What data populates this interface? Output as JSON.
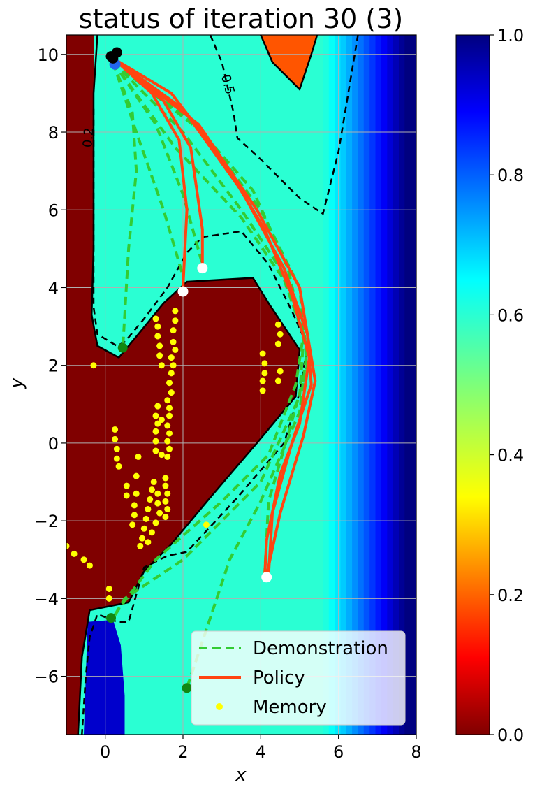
{
  "chart_data": {
    "type": "heatmap",
    "title": "status of iteration 30 (3)",
    "xlabel": "x",
    "ylabel": "y",
    "xlim": [
      -1,
      8
    ],
    "ylim": [
      -7.5,
      10.5
    ],
    "x_ticks": [
      0,
      2,
      4,
      6,
      8
    ],
    "y_ticks": [
      -6,
      -4,
      -2,
      0,
      2,
      4,
      6,
      8,
      10
    ],
    "x_tick_labels": [
      "0",
      "2",
      "4",
      "6",
      "8"
    ],
    "y_tick_labels": [
      "−6",
      "−4",
      "−2",
      "0",
      "2",
      "4",
      "6",
      "8",
      "10"
    ],
    "grid": true,
    "colormap": "jet_r",
    "colorbar": {
      "range": [
        0.0,
        1.0
      ],
      "ticks": [
        0.0,
        0.2,
        0.4,
        0.6,
        0.8,
        1.0
      ],
      "tick_labels": [
        "0.0",
        "0.2",
        "0.4",
        "0.6",
        "0.8",
        "1.0"
      ]
    },
    "contours": [
      {
        "level": "0.2",
        "style": "dashed",
        "color": "#000000",
        "label": "0.2",
        "points": [
          [
            -0.3,
            8.6
          ],
          [
            -0.3,
            6.0
          ],
          [
            -0.3,
            3.5
          ],
          [
            -0.2,
            2.8
          ],
          [
            0.3,
            2.5
          ],
          [
            0.5,
            2.6
          ],
          [
            1.0,
            3.2
          ],
          [
            1.6,
            4.0
          ],
          [
            2.1,
            4.9
          ],
          [
            2.5,
            5.3
          ],
          [
            3.5,
            5.45
          ],
          [
            4.2,
            4.6
          ],
          [
            4.8,
            3.4
          ],
          [
            5.2,
            2.5
          ],
          [
            5.0,
            1.3
          ],
          [
            4.6,
            0.0
          ],
          [
            3.4,
            -1.4
          ],
          [
            2.1,
            -2.8
          ],
          [
            1.6,
            -2.9
          ],
          [
            1.0,
            -3.2
          ],
          [
            0.8,
            -3.9
          ],
          [
            0.6,
            -4.6
          ],
          [
            0.3,
            -4.6
          ],
          [
            -0.2,
            -4.4
          ],
          [
            -0.4,
            -5.0
          ],
          [
            -0.5,
            -6.0
          ],
          [
            -0.6,
            -7.5
          ]
        ]
      },
      {
        "level": "0.5",
        "style": "dashed",
        "color": "#000000",
        "label": "0.5",
        "points": [
          [
            2.7,
            10.5
          ],
          [
            3.0,
            9.8
          ],
          [
            3.3,
            8.5
          ],
          [
            3.4,
            7.85
          ],
          [
            4.0,
            7.3
          ],
          [
            5.0,
            6.3
          ],
          [
            5.6,
            5.9
          ],
          [
            6.0,
            7.5
          ],
          [
            6.5,
            10.5
          ]
        ]
      },
      {
        "level": "0.0-boundary",
        "style": "solid",
        "color": "#000000",
        "points": [
          [
            0.35,
            2.2
          ],
          [
            0.85,
            2.8
          ],
          [
            1.5,
            3.6
          ],
          [
            2.1,
            4.15
          ],
          [
            3.8,
            4.25
          ],
          [
            4.2,
            3.6
          ],
          [
            5.0,
            2.4
          ],
          [
            4.9,
            1.2
          ],
          [
            3.9,
            0.0
          ],
          [
            2.7,
            -1.4
          ],
          [
            1.7,
            -2.6
          ],
          [
            1.0,
            -3.3
          ],
          [
            0.6,
            -4.1
          ],
          [
            -0.4,
            -4.3
          ],
          [
            -0.6,
            -5.5
          ],
          [
            -0.7,
            -7.5
          ]
        ]
      },
      {
        "level": "0.0-boundary",
        "style": "solid",
        "color": "#000000",
        "points": [
          [
            0.35,
            2.2
          ],
          [
            -0.2,
            2.5
          ],
          [
            -0.35,
            3.3
          ],
          [
            -0.3,
            5.0
          ],
          [
            -0.3,
            7.0
          ],
          [
            -0.3,
            9.0
          ],
          [
            -0.2,
            10.5
          ]
        ]
      },
      {
        "level": "0.0-boundary",
        "style": "solid",
        "color": "#000000",
        "points": [
          [
            4.0,
            10.5
          ],
          [
            4.3,
            9.8
          ],
          [
            5.0,
            9.1
          ],
          [
            5.3,
            10.0
          ],
          [
            5.45,
            10.5
          ]
        ]
      }
    ],
    "series": [
      {
        "name": "Demonstration",
        "style": "dashed",
        "color": "#33cc33",
        "paths": [
          [
            [
              0.2,
              9.8
            ],
            [
              0.7,
              8.5
            ],
            [
              0.8,
              7.0
            ],
            [
              0.6,
              5.0
            ],
            [
              0.45,
              2.4
            ]
          ],
          [
            [
              0.2,
              9.8
            ],
            [
              0.8,
              8.0
            ],
            [
              1.5,
              6.0
            ],
            [
              2.0,
              4.3
            ]
          ],
          [
            [
              0.2,
              9.8
            ],
            [
              1.3,
              8.2
            ],
            [
              2.0,
              6.4
            ],
            [
              2.5,
              4.6
            ]
          ],
          [
            [
              0.2,
              9.8
            ],
            [
              2.0,
              8.0
            ],
            [
              3.5,
              6.0
            ],
            [
              4.5,
              4.5
            ],
            [
              5.1,
              2.8
            ],
            [
              4.9,
              1.5
            ],
            [
              4.2,
              -0.3
            ],
            [
              3.0,
              -1.5
            ],
            [
              1.3,
              -3.0
            ],
            [
              0.4,
              -4.2
            ],
            [
              0.2,
              -4.5
            ]
          ],
          [
            [
              0.2,
              9.8
            ],
            [
              2.3,
              8.2
            ],
            [
              3.8,
              6.5
            ],
            [
              4.7,
              4.5
            ],
            [
              5.1,
              2.7
            ],
            [
              5.0,
              1.2
            ],
            [
              4.0,
              -1.0
            ],
            [
              2.0,
              -3.0
            ],
            [
              0.5,
              -4.0
            ],
            [
              0.2,
              -4.5
            ]
          ],
          [
            [
              0.2,
              9.8
            ],
            [
              1.8,
              7.6
            ],
            [
              3.5,
              5.8
            ],
            [
              4.6,
              4.2
            ],
            [
              5.2,
              2.5
            ],
            [
              5.0,
              0.8
            ],
            [
              4.0,
              -1.5
            ],
            [
              3.2,
              -3.0
            ],
            [
              2.7,
              -4.5
            ],
            [
              2.1,
              -6.3
            ]
          ],
          [
            [
              0.2,
              9.8
            ],
            [
              2.5,
              8.0
            ],
            [
              4.0,
              6.0
            ],
            [
              5.0,
              4.0
            ],
            [
              5.2,
              2.0
            ],
            [
              4.7,
              0.2
            ],
            [
              4.2,
              -1.5
            ],
            [
              4.1,
              -3.4
            ]
          ]
        ]
      },
      {
        "name": "Policy",
        "style": "solid",
        "color": "#ff4411",
        "paths": [
          [
            [
              0.2,
              9.9
            ],
            [
              1.2,
              9.0
            ],
            [
              1.9,
              7.8
            ],
            [
              2.1,
              6.0
            ],
            [
              2.0,
              4.0
            ]
          ],
          [
            [
              0.2,
              9.9
            ],
            [
              1.5,
              8.8
            ],
            [
              2.2,
              7.6
            ],
            [
              2.5,
              5.5
            ],
            [
              2.5,
              4.5
            ]
          ],
          [
            [
              0.2,
              9.9
            ],
            [
              1.7,
              9.0
            ],
            [
              3.0,
              7.3
            ],
            [
              4.1,
              5.5
            ],
            [
              4.8,
              3.8
            ],
            [
              5.25,
              2.2
            ],
            [
              5.0,
              0.5
            ],
            [
              4.5,
              -0.8
            ],
            [
              4.15,
              -2.5
            ],
            [
              4.1,
              -3.45
            ]
          ],
          [
            [
              0.2,
              9.9
            ],
            [
              2.0,
              8.6
            ],
            [
              3.5,
              6.5
            ],
            [
              4.6,
              4.5
            ],
            [
              5.2,
              2.8
            ],
            [
              5.3,
              1.5
            ],
            [
              4.8,
              0.0
            ],
            [
              4.3,
              -1.8
            ],
            [
              4.2,
              -3.4
            ]
          ],
          [
            [
              0.2,
              9.9
            ],
            [
              2.4,
              8.2
            ],
            [
              3.9,
              6.0
            ],
            [
              5.0,
              4.0
            ],
            [
              5.4,
              1.6
            ],
            [
              5.1,
              0.2
            ],
            [
              4.5,
              -1.8
            ],
            [
              4.15,
              -3.4
            ]
          ]
        ]
      },
      {
        "name": "Memory",
        "style": "scatter",
        "color": "#ffff00",
        "points": [
          [
            1.3,
            3.2
          ],
          [
            1.35,
            3.0
          ],
          [
            1.35,
            2.75
          ],
          [
            1.4,
            2.5
          ],
          [
            1.4,
            2.25
          ],
          [
            1.45,
            2.0
          ],
          [
            1.8,
            3.4
          ],
          [
            1.8,
            3.15
          ],
          [
            1.75,
            2.9
          ],
          [
            1.75,
            2.6
          ],
          [
            1.8,
            2.4
          ],
          [
            1.7,
            2.2
          ],
          [
            1.75,
            2.0
          ],
          [
            1.7,
            1.8
          ],
          [
            1.65,
            1.55
          ],
          [
            1.7,
            1.3
          ],
          [
            1.6,
            1.1
          ],
          [
            1.65,
            0.9
          ],
          [
            1.65,
            0.7
          ],
          [
            1.6,
            0.45
          ],
          [
            1.65,
            0.25
          ],
          [
            1.6,
            0.05
          ],
          [
            1.65,
            -0.15
          ],
          [
            1.6,
            -0.35
          ],
          [
            1.55,
            -0.9
          ],
          [
            1.55,
            -1.1
          ],
          [
            1.6,
            -1.3
          ],
          [
            1.55,
            -1.5
          ],
          [
            1.6,
            -1.7
          ],
          [
            1.55,
            -1.9
          ],
          [
            1.35,
            0.95
          ],
          [
            1.3,
            0.7
          ],
          [
            1.35,
            0.5
          ],
          [
            1.3,
            0.3
          ],
          [
            1.3,
            0.05
          ],
          [
            1.3,
            -0.2
          ],
          [
            1.45,
            -0.3
          ],
          [
            1.45,
            0.6
          ],
          [
            1.25,
            -1.0
          ],
          [
            1.2,
            -1.2
          ],
          [
            1.15,
            -1.45
          ],
          [
            1.1,
            -1.7
          ],
          [
            1.05,
            -1.95
          ],
          [
            1.0,
            -2.2
          ],
          [
            0.95,
            -2.45
          ],
          [
            0.9,
            -2.65
          ],
          [
            1.35,
            -1.3
          ],
          [
            1.35,
            -1.55
          ],
          [
            1.4,
            -1.8
          ],
          [
            1.3,
            -2.05
          ],
          [
            1.2,
            -2.3
          ],
          [
            1.1,
            -2.55
          ],
          [
            0.8,
            -1.3
          ],
          [
            0.75,
            -1.6
          ],
          [
            0.75,
            -1.85
          ],
          [
            0.7,
            -2.1
          ],
          [
            0.55,
            -1.1
          ],
          [
            0.55,
            -1.35
          ],
          [
            0.85,
            -0.35
          ],
          [
            0.8,
            -0.85
          ],
          [
            0.25,
            0.35
          ],
          [
            0.25,
            0.1
          ],
          [
            0.3,
            -0.15
          ],
          [
            0.3,
            -0.4
          ],
          [
            0.35,
            -0.6
          ],
          [
            4.05,
            2.3
          ],
          [
            4.1,
            2.05
          ],
          [
            4.1,
            1.8
          ],
          [
            4.05,
            1.6
          ],
          [
            4.05,
            1.35
          ],
          [
            4.45,
            3.05
          ],
          [
            4.5,
            2.8
          ],
          [
            4.45,
            2.55
          ],
          [
            4.5,
            1.85
          ],
          [
            4.45,
            1.6
          ],
          [
            -1.0,
            -2.65
          ],
          [
            -0.8,
            -2.85
          ],
          [
            -0.55,
            -3.0
          ],
          [
            -0.4,
            -3.15
          ],
          [
            0.1,
            -3.75
          ],
          [
            0.1,
            -4.0
          ],
          [
            -0.3,
            2.0
          ],
          [
            2.6,
            -2.1
          ]
        ]
      }
    ],
    "markers": {
      "goal_black": [
        [
          0.2,
          9.9
        ],
        [
          0.3,
          10.05
        ],
        [
          0.15,
          9.95
        ]
      ],
      "goal_blue": [
        [
          0.25,
          9.75
        ]
      ],
      "policy_starts_white": [
        [
          2.0,
          3.9
        ],
        [
          2.5,
          4.5
        ],
        [
          4.15,
          -3.45
        ]
      ],
      "demo_starts_green": [
        [
          0.45,
          2.45
        ],
        [
          0.15,
          -4.5
        ],
        [
          2.1,
          -6.3
        ]
      ]
    },
    "legend": {
      "placement": "lower-right",
      "entries": [
        "Demonstration",
        "Policy",
        "Memory"
      ]
    }
  }
}
